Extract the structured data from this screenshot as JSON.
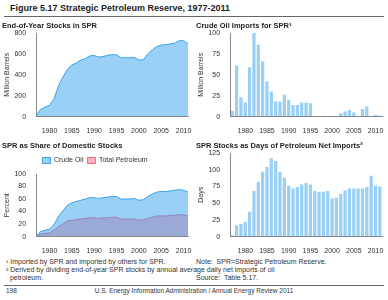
{
  "title": "Figure 5.17  Strategic Petroleum Reserve, 1977-2011",
  "chart_data": [
    {
      "type": "area",
      "title": "End-of-Year Stocks in SPR",
      "y_label": "Million Barrels",
      "x": [
        1977,
        1978,
        1979,
        1980,
        1981,
        1982,
        1983,
        1984,
        1985,
        1986,
        1987,
        1988,
        1989,
        1990,
        1991,
        1992,
        1993,
        1994,
        1995,
        1996,
        1997,
        1998,
        1999,
        2000,
        2001,
        2002,
        2003,
        2004,
        2005,
        2006,
        2007,
        2008,
        2009,
        2010,
        2011
      ],
      "values": [
        7,
        68,
        91,
        108,
        167,
        293,
        379,
        451,
        493,
        512,
        541,
        554,
        580,
        585,
        570,
        575,
        587,
        592,
        592,
        563,
        563,
        563,
        567,
        541,
        545,
        599,
        638,
        670,
        685,
        688,
        696,
        702,
        726,
        727,
        696
      ],
      "xlim": [
        1977,
        2011
      ],
      "xticks": [
        1980,
        1985,
        1990,
        1995,
        2000,
        2005,
        2010
      ],
      "ylim": [
        0,
        800
      ],
      "yticks": [
        0,
        200,
        400,
        600,
        800
      ],
      "grid": false
    },
    {
      "type": "bar",
      "title": "Crude Oil Imports for SPR¹",
      "y_label": "Million Barrels",
      "x": [
        1977,
        1978,
        1979,
        1980,
        1981,
        1982,
        1983,
        1984,
        1985,
        1986,
        1987,
        1988,
        1989,
        1990,
        1991,
        1992,
        1993,
        1994,
        1995,
        1996,
        1997,
        1998,
        1999,
        2000,
        2001,
        2002,
        2003,
        2004,
        2005,
        2006,
        2007,
        2008,
        2009,
        2010,
        2011
      ],
      "values": [
        7,
        61,
        23,
        17,
        59,
        100,
        86,
        66,
        42,
        30,
        18,
        18,
        26,
        20,
        14,
        14,
        17,
        17,
        16,
        0,
        0,
        1,
        0,
        0,
        0,
        4,
        6,
        8,
        5,
        0,
        9,
        12,
        0,
        2,
        1
      ],
      "xlim": [
        1976.5,
        2011.5
      ],
      "xticks": [
        1980,
        1985,
        1990,
        1995,
        2000,
        2005,
        2010
      ],
      "ylim": [
        0,
        100
      ],
      "yticks": [
        0,
        25,
        50,
        75,
        100
      ],
      "grid": false
    },
    {
      "type": "area",
      "title": "SPR as Share of Domestic Stocks",
      "y_label": "Percent",
      "x": [
        1977,
        1978,
        1979,
        1980,
        1981,
        1982,
        1983,
        1984,
        1985,
        1986,
        1987,
        1988,
        1989,
        1990,
        1991,
        1992,
        1993,
        1994,
        1995,
        1996,
        1997,
        1998,
        1999,
        2000,
        2001,
        2002,
        2003,
        2004,
        2005,
        2006,
        2007,
        2008,
        2009,
        2010,
        2011
      ],
      "series": [
        {
          "name": "Crude Oil",
          "values": [
            1,
            8,
            10,
            12,
            19,
            32,
            41,
            50,
            54,
            56,
            58,
            60,
            62,
            62,
            61,
            62,
            63,
            64,
            64,
            60,
            60,
            60,
            61,
            58,
            59,
            64,
            68,
            71,
            72,
            72,
            73,
            74,
            75,
            74,
            71
          ]
        },
        {
          "name": "Total Petroleum",
          "values": [
            0.7,
            4,
            5,
            6,
            10,
            16,
            20,
            25,
            26,
            27,
            28,
            29,
            30,
            30,
            29,
            30,
            30,
            31,
            31,
            28,
            28,
            28,
            28,
            26,
            27,
            29,
            31,
            33,
            33,
            33,
            34,
            34,
            35,
            35,
            33
          ]
        }
      ],
      "xlim": [
        1977,
        2011
      ],
      "xticks": [
        1980,
        1985,
        1990,
        1995,
        2000,
        2005,
        2010
      ],
      "ylim": [
        0,
        100
      ],
      "yticks": [
        0,
        20,
        40,
        60,
        80,
        100
      ],
      "grid": false,
      "legend": "top"
    },
    {
      "type": "bar",
      "title": "SPR Stocks as Days of Petroleum Net Imports²",
      "y_label": "Days",
      "x": [
        1977,
        1978,
        1979,
        1980,
        1981,
        1982,
        1983,
        1984,
        1985,
        1986,
        1987,
        1988,
        1989,
        1990,
        1991,
        1992,
        1993,
        1994,
        1995,
        1996,
        1997,
        1998,
        1999,
        2000,
        2001,
        2002,
        2003,
        2004,
        2005,
        2006,
        2007,
        2008,
        2009,
        2010,
        2011
      ],
      "values": [
        2,
        17,
        19,
        22,
        37,
        68,
        82,
        97,
        104,
        117,
        113,
        97,
        88,
        76,
        72,
        74,
        78,
        80,
        78,
        68,
        67,
        67,
        68,
        57,
        58,
        64,
        69,
        72,
        72,
        72,
        72,
        74,
        91,
        76,
        75
      ],
      "xlim": [
        1976.5,
        2011.5
      ],
      "xticks": [
        1980,
        1985,
        1990,
        1995,
        2000,
        2005,
        2010
      ],
      "ylim": [
        0,
        125
      ],
      "yticks": [
        0,
        25,
        50,
        75,
        100,
        125
      ],
      "grid": false
    }
  ],
  "footnotes": [
    "¹ Imported by SPR and imported by others for SPR.",
    "² Derived by dividing end-of-year SPR stocks by annual average daily net imports of oil",
    "  petroleum."
  ],
  "notes": [
    "Note:  SPR=Strategic Petroleum Reserve.",
    "Source:  Table 5.17."
  ],
  "footer": [
    "198",
    "U.S. Energy Information Administration / Annual Energy Review 2011"
  ]
}
